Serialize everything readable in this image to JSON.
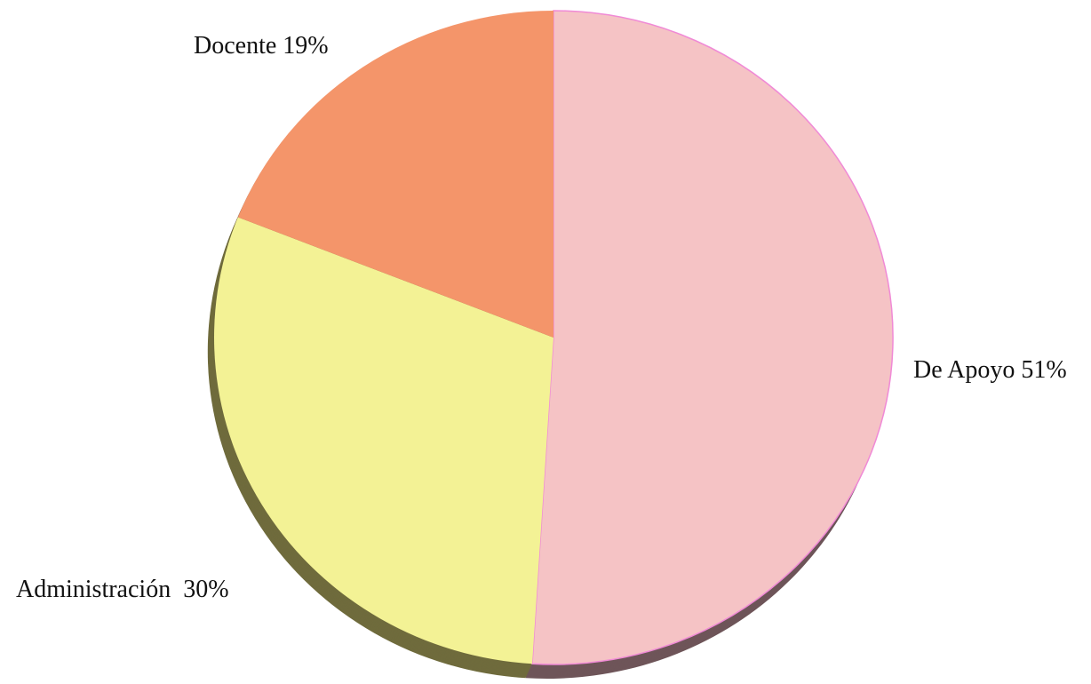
{
  "chart_data": {
    "type": "pie",
    "title": "",
    "categories": [
      "De Apoyo",
      "Administración",
      "Docente"
    ],
    "values": [
      51,
      30,
      19
    ],
    "labels": [
      "De Apoyo 51%",
      "Administración  30%",
      "Docente 19%"
    ],
    "colors": [
      "#f5c3c5",
      "#f3f295",
      "#f4956a"
    ],
    "shadow_colors": [
      "#6e5559",
      "#6f6b3c",
      "#7a5a44"
    ],
    "start": "12 o'clock",
    "direction": "clockwise",
    "style": "3D pie with drop-shadow edge",
    "legend": "none (labels outside slices)"
  }
}
